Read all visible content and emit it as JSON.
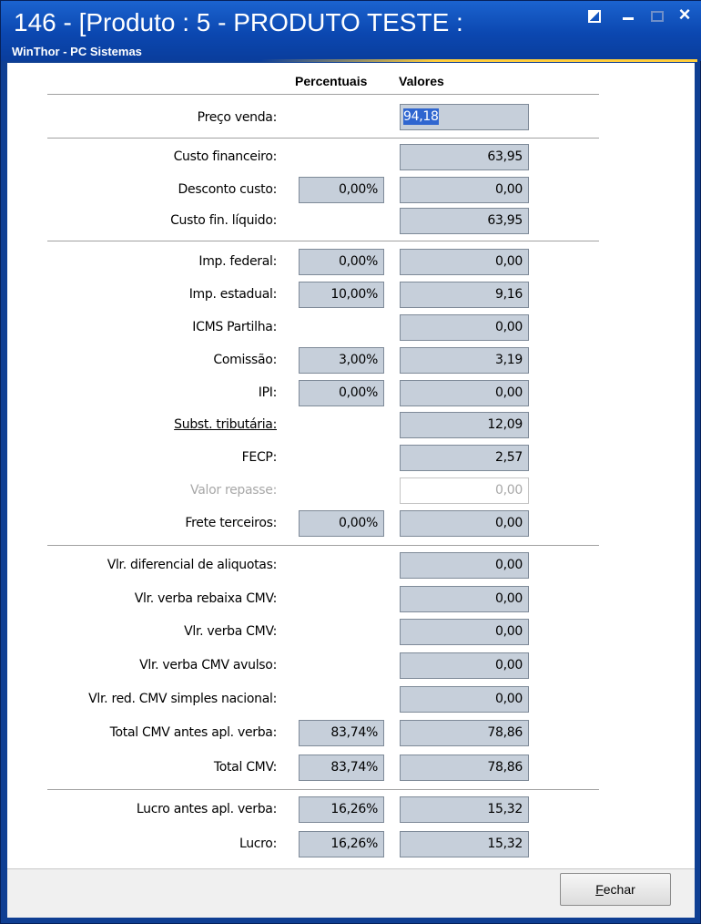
{
  "window": {
    "title": "146 - [Produto : 5 - PRODUTO TESTE :",
    "subtitle": "WinThor - PC Sistemas",
    "restore_glyph": "",
    "minimize_glyph": "",
    "maximize_glyph": "",
    "close_glyph": "×"
  },
  "headers": {
    "percentuais": "Percentuais",
    "valores": "Valores"
  },
  "preco_venda": {
    "label": "Preço venda:",
    "value": "94,18"
  },
  "rows": {
    "custo_financeiro": {
      "label": "Custo financeiro:",
      "value": "63,95"
    },
    "desconto_custo": {
      "label": "Desconto custo:",
      "pct": "0,00%",
      "value": "0,00"
    },
    "custo_fin_liquido": {
      "label": "Custo fin. líquido:",
      "value": "63,95"
    },
    "imp_federal": {
      "label": "Imp. federal:",
      "pct": "0,00%",
      "value": "0,00"
    },
    "imp_estadual": {
      "label": "Imp. estadual:",
      "pct": "10,00%",
      "value": "9,16"
    },
    "icms_partilha": {
      "label": "ICMS Partilha:",
      "value": "0,00"
    },
    "comissao": {
      "label": "Comissão:",
      "pct": "3,00%",
      "value": "3,19"
    },
    "ipi": {
      "label": "IPI:",
      "pct": "0,00%",
      "value": "0,00"
    },
    "subst_tributaria": {
      "label": "Subst. tributária:",
      "value": "12,09"
    },
    "fecp": {
      "label": "FECP:",
      "value": "2,57"
    },
    "valor_repasse": {
      "label": "Valor repasse:",
      "value": "0,00"
    },
    "frete_terceiros": {
      "label": "Frete terceiros:",
      "pct": "0,00%",
      "value": "0,00"
    },
    "vlr_diferencial": {
      "label": "Vlr. diferencial de aliquotas:",
      "value": "0,00"
    },
    "vlr_verba_rebaixa": {
      "label": "Vlr. verba rebaixa CMV:",
      "value": "0,00"
    },
    "vlr_verba_cmv": {
      "label": "Vlr. verba CMV:",
      "value": "0,00"
    },
    "vlr_verba_cmv_avulso": {
      "label": "Vlr. verba CMV avulso:",
      "value": "0,00"
    },
    "vlr_red_cmv": {
      "label": "Vlr. red. CMV simples nacional:",
      "value": "0,00"
    },
    "total_cmv_antes": {
      "label": "Total CMV antes apl. verba:",
      "pct": "83,74%",
      "value": "78,86"
    },
    "total_cmv": {
      "label": "Total CMV:",
      "pct": "83,74%",
      "value": "78,86"
    },
    "lucro_antes": {
      "label": "Lucro antes apl. verba:",
      "pct": "16,26%",
      "value": "15,32"
    },
    "lucro": {
      "label": "Lucro:",
      "pct": "16,26%",
      "value": "15,32"
    }
  },
  "footer": {
    "fechar_first": "F",
    "fechar_rest": "echar"
  }
}
